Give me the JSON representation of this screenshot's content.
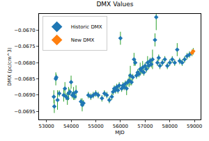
{
  "chart_data": {
    "type": "scatter",
    "title": "DMX Values",
    "x_label": "MJD",
    "y_label": "DMX (pc/cm^3)",
    "xlim": [
      52700,
      59250
    ],
    "xticks": [
      53000,
      54000,
      55000,
      56000,
      57000,
      58000,
      59000
    ],
    "ylim": [
      -0.06975,
      -0.0665
    ],
    "yticks": [
      {
        "value": -0.0695,
        "label": "−0.0695"
      },
      {
        "value": -0.069,
        "label": "−0.0690"
      },
      {
        "value": -0.0685,
        "label": "−0.0685"
      },
      {
        "value": -0.068,
        "label": "−0.0680"
      },
      {
        "value": -0.0675,
        "label": "−0.0675"
      },
      {
        "value": -0.067,
        "label": "−0.0670"
      }
    ],
    "grid": false,
    "legend": "upper left",
    "series": [
      {
        "name": "Historic DMX",
        "color": "#1f77b4",
        "marker": "diamond",
        "x": [
          53300,
          53320,
          53380,
          53400,
          53450,
          53520,
          53700,
          53750,
          53800,
          53850,
          53900,
          53950,
          54000,
          54050,
          54100,
          54150,
          54200,
          54400,
          54450,
          54500,
          54700,
          54800,
          54900,
          55000,
          55100,
          55250,
          55350,
          55450,
          55550,
          55650,
          55700,
          55750,
          55800,
          55850,
          55900,
          55950,
          56000,
          56050,
          56100,
          56150,
          56200,
          56250,
          56300,
          56350,
          56400,
          56450,
          56500,
          56550,
          56600,
          56650,
          56700,
          56750,
          56800,
          56850,
          56900,
          56950,
          57000,
          57050,
          57100,
          57150,
          57200,
          57250,
          57300,
          57400,
          57450,
          57500,
          57550,
          57600,
          57700,
          57800,
          57900,
          58000,
          58100,
          58200,
          58300,
          58400,
          58500,
          58600,
          58700,
          58800
        ],
        "values": [
          -0.06905,
          -0.06935,
          -0.0685,
          -0.06845,
          -0.06915,
          -0.06895,
          -0.069,
          -0.0688,
          -0.06905,
          -0.0691,
          -0.06895,
          -0.0689,
          -0.0686,
          -0.069,
          -0.06895,
          -0.06905,
          -0.0689,
          -0.0692,
          -0.0693,
          -0.06925,
          -0.069,
          -0.06905,
          -0.069,
          -0.06895,
          -0.069,
          -0.0691,
          -0.06895,
          -0.069,
          -0.06915,
          -0.06905,
          -0.0689,
          -0.0688,
          -0.06885,
          -0.06875,
          -0.06885,
          -0.0687,
          -0.06725,
          -0.0688,
          -0.0687,
          -0.06875,
          -0.06865,
          -0.0688,
          -0.0686,
          -0.06855,
          -0.0684,
          -0.0686,
          -0.06845,
          -0.0679,
          -0.068,
          -0.0684,
          -0.0683,
          -0.06835,
          -0.0682,
          -0.06825,
          -0.06815,
          -0.0683,
          -0.0681,
          -0.0682,
          -0.068,
          -0.0681,
          -0.06795,
          -0.06805,
          -0.0679,
          -0.0673,
          -0.0666,
          -0.068,
          -0.06785,
          -0.0681,
          -0.068,
          -0.0679,
          -0.0681,
          -0.068,
          -0.0679,
          -0.068,
          -0.0676,
          -0.06795,
          -0.068,
          -0.0679,
          -0.0678,
          -0.06775
        ],
        "errors": [
          0.0002,
          0.0002,
          0.0002,
          0.0001,
          0.0003,
          0.0001,
          0.0002,
          0.0002,
          0.0001,
          0.0002,
          0.0002,
          0.0001,
          0.0002,
          0.0001,
          0.0002,
          0.0001,
          0.0002,
          0.0001,
          0.0002,
          0.0001,
          0.0001,
          0.0001,
          0.0001,
          0.0001,
          0.0001,
          0.0001,
          0.0001,
          0.0001,
          0.0001,
          0.0001,
          0.0001,
          0.0001,
          0.0001,
          0.0001,
          0.0001,
          0.0001,
          0.0002,
          0.0001,
          0.0001,
          0.0001,
          0.0001,
          0.0002,
          0.0001,
          0.0002,
          0.0003,
          0.0001,
          0.0001,
          0.0002,
          0.0001,
          0.0001,
          0.0001,
          0.0001,
          0.0002,
          0.0001,
          0.0002,
          0.0001,
          0.0001,
          0.0001,
          0.0002,
          0.0001,
          0.0001,
          0.0001,
          0.0003,
          0.0002,
          0.0004,
          0.0001,
          0.0001,
          0.0001,
          0.0001,
          0.0001,
          0.0001,
          0.0001,
          0.0001,
          0.0001,
          0.0002,
          0.0001,
          0.0001,
          0.0001,
          0.0001,
          0.0001
        ]
      },
      {
        "name": "New DMX",
        "color": "#ff7f0e",
        "marker": "diamond",
        "x": [
          58900,
          58950
        ],
        "values": [
          -0.0677,
          -0.06765
        ],
        "errors": [
          0.0001,
          0.0001
        ]
      }
    ]
  }
}
